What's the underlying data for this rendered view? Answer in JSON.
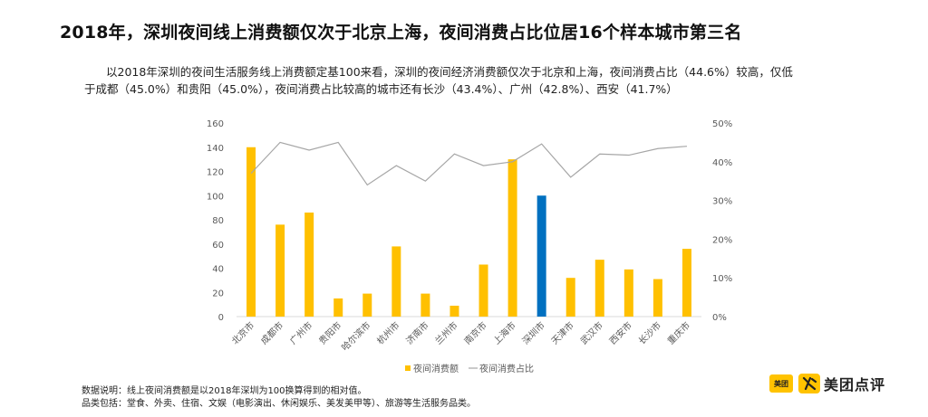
{
  "title": "2018年，深圳夜间线上消费额仅次于北京上海，夜间消费占比位居16个样本城市第三名",
  "description": "以2018年深圳的夜间生活服务线上消费额定基100来看，深圳的夜间经济消费额仅次于北京和上海，夜间消费占比（44.6%）较高，仅低于成都（45.0%）和贵阳（45.0%），夜间消费占比较高的城市还有长沙（43.4%）、广州（42.8%）、西安（41.7%）",
  "chart_data": {
    "type": "bar+line",
    "categories": [
      "北京市",
      "成都市",
      "广州市",
      "贵阳市",
      "哈尔滨市",
      "杭州市",
      "济南市",
      "兰州市",
      "南京市",
      "上海市",
      "深圳市",
      "天津市",
      "武汉市",
      "西安市",
      "长沙市",
      "重庆市"
    ],
    "series": [
      {
        "name": "夜间消费额",
        "type": "bar",
        "axis": "left",
        "color": "#FFC000",
        "highlight_color": "#0070C0",
        "highlight_category": "深圳市",
        "values": [
          140,
          76,
          86,
          15,
          19,
          58,
          19,
          9,
          43,
          130,
          100,
          32,
          47,
          39,
          31,
          56
        ]
      },
      {
        "name": "夜间消费占比",
        "type": "line",
        "axis": "right",
        "color": "#A6A6A6",
        "values": [
          37,
          45,
          43,
          45,
          34,
          39,
          35,
          42,
          39,
          40,
          44.6,
          36,
          42,
          41.7,
          43.4,
          44
        ]
      }
    ],
    "y_left": {
      "min": 0,
      "max": 160,
      "ticks": [
        "0",
        "20",
        "40",
        "60",
        "80",
        "100",
        "120",
        "140",
        "160"
      ]
    },
    "y_right": {
      "min": 0,
      "max": 50,
      "ticks": [
        "0%",
        "10%",
        "20%",
        "30%",
        "40%",
        "50%"
      ]
    },
    "legend": {
      "items": [
        "夜间消费额",
        "夜间消费占比"
      ],
      "placement": "bottom-center"
    }
  },
  "notes": {
    "line1": "数据说明：线上夜间消费额是以2018年深圳为100换算得到的相对值。",
    "line2": "品类包括：堂食、外卖、住宿、文娱（电影演出、休闲娱乐、美发美甲等）、旅游等生活服务品类。"
  },
  "logo": {
    "box_text": "美团",
    "text": "美团点评",
    "brand_color": "#FFC300"
  }
}
